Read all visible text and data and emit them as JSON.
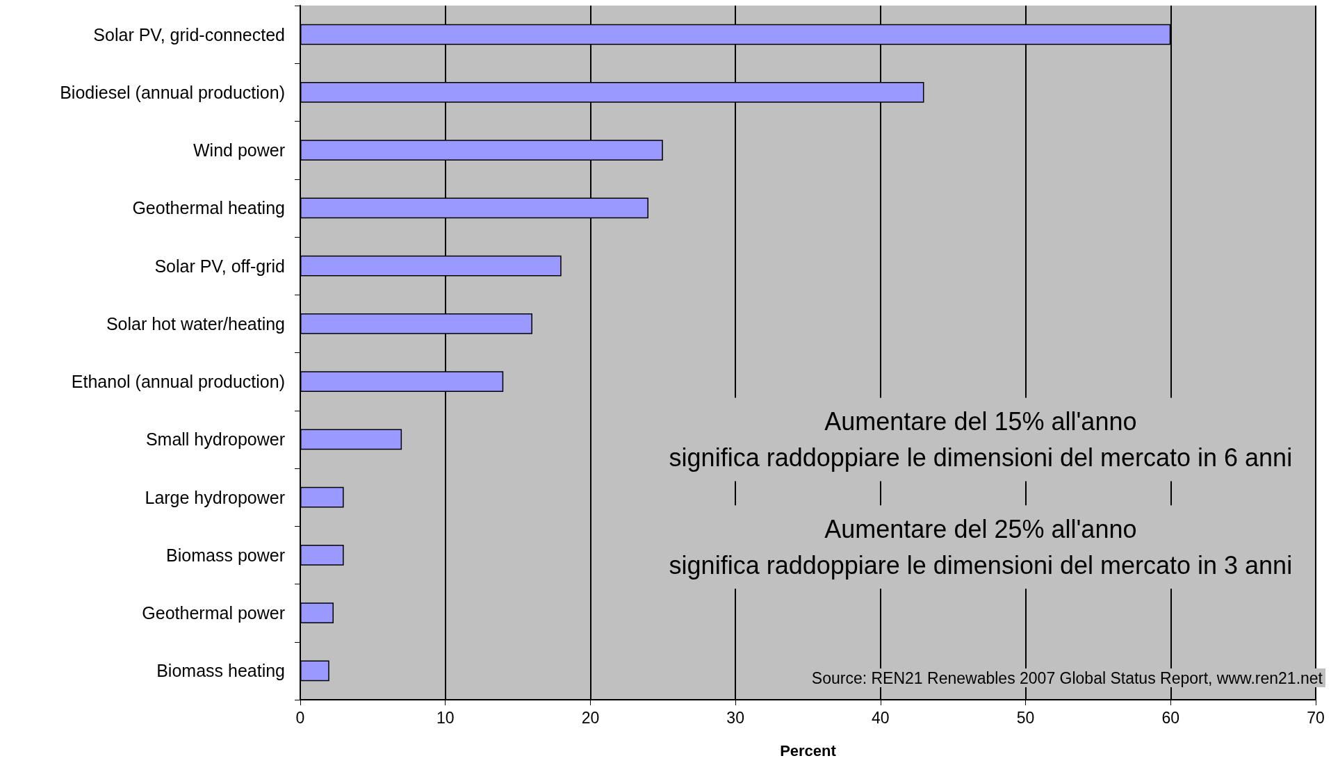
{
  "chart_data": {
    "type": "bar",
    "orientation": "horizontal",
    "xlabel": "Percent",
    "categories": [
      "Solar PV, grid-connected",
      "Biodiesel (annual production)",
      "Wind power",
      "Geothermal heating",
      "Solar PV, off-grid",
      "Solar hot water/heating",
      "Ethanol (annual production)",
      "Small hydropower",
      "Large hydropower",
      "Biomass power",
      "Geothermal power",
      "Biomass heating"
    ],
    "values": [
      60,
      43,
      25,
      24,
      18,
      16,
      14,
      7,
      3,
      3,
      2.3,
      2
    ],
    "color": "#9999ff",
    "xlim": [
      0,
      70
    ],
    "xticks": [
      0,
      10,
      20,
      30,
      40,
      50,
      60,
      70
    ],
    "grid": "x",
    "annotations": [
      "Aumentare del 15% all'anno\nsignifica raddoppiare le dimensioni del mercato in 6 anni",
      "Aumentare del 25% all'anno\nsignifica raddoppiare le dimensioni del mercato in 3 anni",
      "Source: REN21 Renewables 2007 Global Status Report, www.ren21.net"
    ]
  }
}
